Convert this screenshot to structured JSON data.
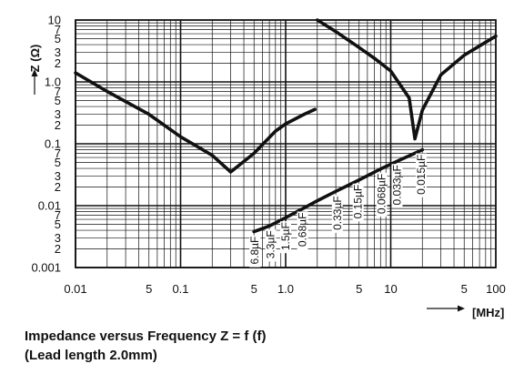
{
  "chart_data": {
    "type": "line",
    "title": "Impedance versus Frequency Z = f (f)",
    "subtitle": "(Lead length 2.0mm)",
    "ylabel": "Z (Ω)",
    "xlabel": "[MHz]",
    "xscale": "log",
    "yscale": "log",
    "xlim": [
      0.01,
      100
    ],
    "ylim": [
      0.001,
      10
    ],
    "grid": true,
    "x_tick_labels": [
      {
        "v": 0.01,
        "t": "0.01"
      },
      {
        "v": 0.05,
        "t": "5"
      },
      {
        "v": 0.1,
        "t": "0.1"
      },
      {
        "v": 0.5,
        "t": "5"
      },
      {
        "v": 1,
        "t": "1.0"
      },
      {
        "v": 5,
        "t": "5"
      },
      {
        "v": 10,
        "t": "10"
      },
      {
        "v": 50,
        "t": "5"
      },
      {
        "v": 100,
        "t": "100"
      }
    ],
    "y_tick_labels": [
      {
        "v": 10,
        "t": "10"
      },
      {
        "v": 7,
        "t": "7"
      },
      {
        "v": 5,
        "t": "5"
      },
      {
        "v": 3,
        "t": "3"
      },
      {
        "v": 2,
        "t": "2"
      },
      {
        "v": 1,
        "t": "1.0"
      },
      {
        "v": 0.7,
        "t": "7"
      },
      {
        "v": 0.5,
        "t": "5"
      },
      {
        "v": 0.3,
        "t": "3"
      },
      {
        "v": 0.2,
        "t": "2"
      },
      {
        "v": 0.1,
        "t": "0.1"
      },
      {
        "v": 0.07,
        "t": "7"
      },
      {
        "v": 0.05,
        "t": "5"
      },
      {
        "v": 0.03,
        "t": "3"
      },
      {
        "v": 0.02,
        "t": "2"
      },
      {
        "v": 0.01,
        "t": "0.01"
      },
      {
        "v": 0.007,
        "t": "7"
      },
      {
        "v": 0.005,
        "t": "5"
      },
      {
        "v": 0.003,
        "t": "3"
      },
      {
        "v": 0.002,
        "t": "2"
      },
      {
        "v": 0.001,
        "t": "0.001"
      }
    ],
    "series": [
      {
        "name": "6.8µF",
        "x": [
          0.01,
          0.02,
          0.05,
          0.1,
          0.2,
          0.3,
          0.5,
          0.8,
          1,
          1.5,
          1.9
        ],
        "y": [
          1.4,
          0.7,
          0.3,
          0.13,
          0.065,
          0.035,
          0.07,
          0.16,
          0.21,
          0.3,
          0.36
        ]
      },
      {
        "name": "0.015µF",
        "x": [
          2,
          3,
          5,
          7,
          10,
          15,
          17,
          20,
          30,
          50,
          100
        ],
        "y": [
          10,
          6.5,
          3.6,
          2.4,
          1.5,
          0.55,
          0.12,
          0.35,
          1.3,
          2.7,
          5.5
        ]
      }
    ],
    "resonance_line": {
      "x": [
        0.5,
        0.7,
        1.0,
        1.5,
        2.0,
        3.0,
        5.0,
        8.0,
        12,
        20
      ],
      "y": [
        0.0038,
        0.0047,
        0.0064,
        0.0092,
        0.012,
        0.017,
        0.026,
        0.039,
        0.054,
        0.08
      ]
    },
    "capacitor_labels": [
      {
        "text": "6.8µF",
        "x": 0.51,
        "y": 0.0038
      },
      {
        "text": "3.3µF",
        "x": 0.72,
        "y": 0.0047
      },
      {
        "text": "1.5µF",
        "x": 1.0,
        "y": 0.0064
      },
      {
        "text": "0.68µF",
        "x": 1.45,
        "y": 0.0092
      },
      {
        "text": "0.33µF",
        "x": 3.1,
        "y": 0.017
      },
      {
        "text": "0.15µF",
        "x": 4.9,
        "y": 0.026
      },
      {
        "text": "0.068µF",
        "x": 8.2,
        "y": 0.039
      },
      {
        "text": "0.033µF",
        "x": 11.5,
        "y": 0.054
      },
      {
        "text": "0.015µF",
        "x": 19.5,
        "y": 0.08
      }
    ]
  },
  "caption": {
    "line1": "Impedance versus Frequency Z = f (f)",
    "line2": "(Lead length 2.0mm)"
  }
}
